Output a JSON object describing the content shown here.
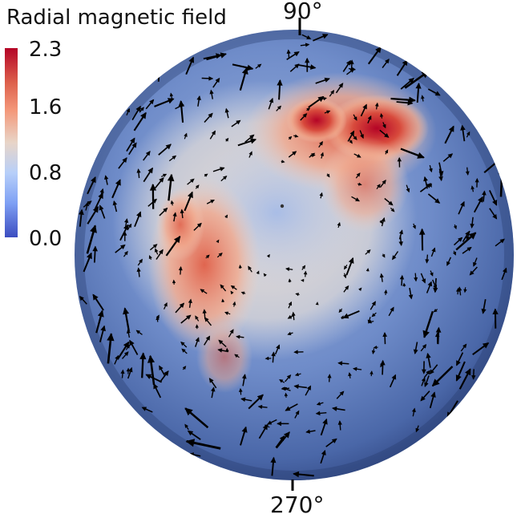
{
  "colorbar": {
    "title": "Radial magnetic field",
    "ticks": [
      "2.3",
      "1.6",
      "0.8",
      "0.0"
    ],
    "colormap": [
      "#3b4cc0",
      "#7ea0f4",
      "#b7cff9",
      "#e8d5c8",
      "#f4987a",
      "#dd5f4b",
      "#b40426"
    ]
  },
  "axis_labels": {
    "top": "90°",
    "bottom": "270°"
  },
  "colors": {
    "background": "#ffffff",
    "sphere_base": "#4a67a8",
    "arrows": "#000000"
  }
}
